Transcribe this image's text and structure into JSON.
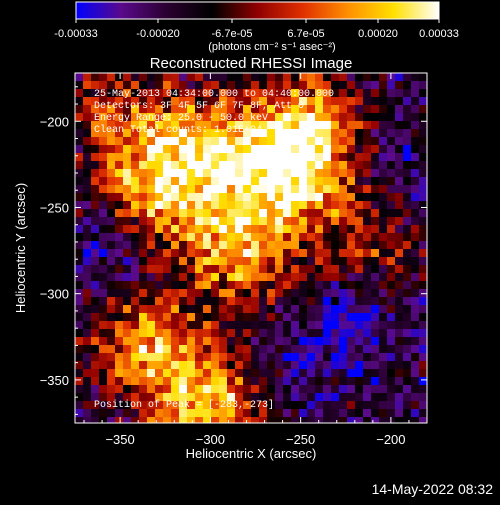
{
  "chart_data": {
    "type": "heatmap",
    "title": "Reconstructed RHESSI Image",
    "xlabel": "Heliocentric X (arcsec)",
    "ylabel": "Heliocentric Y (arcsec)",
    "xlim": [
      -375,
      -180
    ],
    "ylim": [
      -375,
      -172
    ],
    "xticks": [
      -350,
      -300,
      -250,
      -200
    ],
    "yticks": [
      -200,
      -250,
      -300,
      -350
    ],
    "colorbar": {
      "range": [
        -0.00033,
        0.00033
      ],
      "ticks": [
        "-0.00033",
        "-0.00020",
        "-6.7e-05",
        "6.7e-05",
        "0.00020",
        "0.00033"
      ],
      "label": "(photons cm⁻² s⁻¹ asec⁻²)",
      "stops": [
        "#0000ff",
        "#5a0a8a",
        "#2a0030",
        "#000000",
        "#900000",
        "#e03000",
        "#ff9000",
        "#ffe000",
        "#ffffff"
      ]
    },
    "annotations": [
      "25-May-2013 04:34:00.000 to 04:40:00.000",
      "Detectors: 3F 4F 5F 6F 7F 8F, Att 0",
      "Energy Range: 25.0 - 50.0 keV",
      "Clean     Total counts: 1.01E+04"
    ],
    "peak_label": "Position of Peak = [-283,-273]",
    "peak": {
      "x": -283,
      "y": -273
    },
    "bright_regions": [
      {
        "x": -330,
        "y": -240,
        "amp": 1.0
      },
      {
        "x": -300,
        "y": -215,
        "amp": 0.9
      },
      {
        "x": -255,
        "y": -228,
        "amp": 1.1
      },
      {
        "x": -245,
        "y": -200,
        "amp": 0.8
      },
      {
        "x": -300,
        "y": -365,
        "amp": 1.1
      },
      {
        "x": -335,
        "y": -330,
        "amp": 0.9
      },
      {
        "x": -283,
        "y": -273,
        "amp": 1.0
      },
      {
        "x": -215,
        "y": -270,
        "amp": 0.5
      },
      {
        "x": -350,
        "y": -195,
        "amp": 0.6
      }
    ],
    "dark_regions": [
      {
        "x": -225,
        "y": -320,
        "amp": 1.0
      },
      {
        "x": -360,
        "y": -270,
        "amp": 0.8
      },
      {
        "x": -200,
        "y": -225,
        "amp": 0.6
      },
      {
        "x": -265,
        "y": -355,
        "amp": 0.6
      }
    ]
  },
  "footer_date": "14-May-2022 08:32"
}
